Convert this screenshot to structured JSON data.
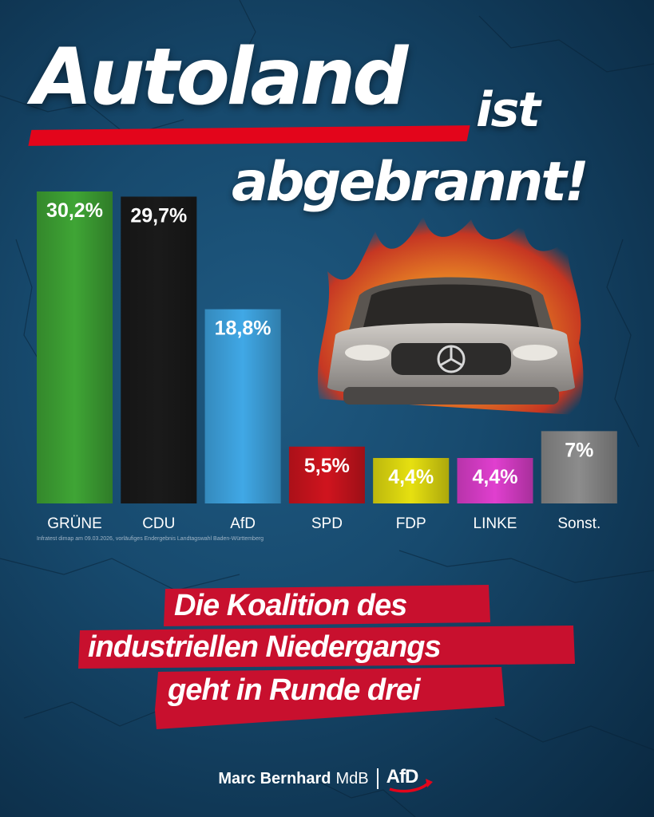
{
  "headline": {
    "line1": "Autoland",
    "line1_suffix": "ist",
    "line2": "abgebrannt!"
  },
  "chart_data": {
    "type": "bar",
    "categories": [
      "GRÜNE",
      "CDU",
      "AfD",
      "SPD",
      "FDP",
      "LINKE",
      "Sonst."
    ],
    "values": [
      30.2,
      29.7,
      18.8,
      5.5,
      4.4,
      4.4,
      7
    ],
    "value_labels": [
      "30,2%",
      "29,7%",
      "18,8%",
      "5,5%",
      "4,4%",
      "4,4%",
      "7%"
    ],
    "colors": [
      "#3fa535",
      "#1a1a1a",
      "#40a8e6",
      "#d0141e",
      "#e6e010",
      "#e03fcf",
      "#8c8c8c"
    ],
    "ylim": [
      0,
      33
    ]
  },
  "source_note": "Infratest dimap am 09.03.2026, vorläufiges Endergebnis Landtagswahl Baden-Württemberg",
  "subtitle": {
    "line1": "Die Koalition des",
    "line2": "industriellen Niedergangs",
    "line3": "geht in Runde drei"
  },
  "footer": {
    "name": "Marc Bernhard",
    "title": "MdB",
    "logo_text": "AfD"
  },
  "colors": {
    "accent_red": "#e3051b",
    "background": "#174a6e"
  }
}
